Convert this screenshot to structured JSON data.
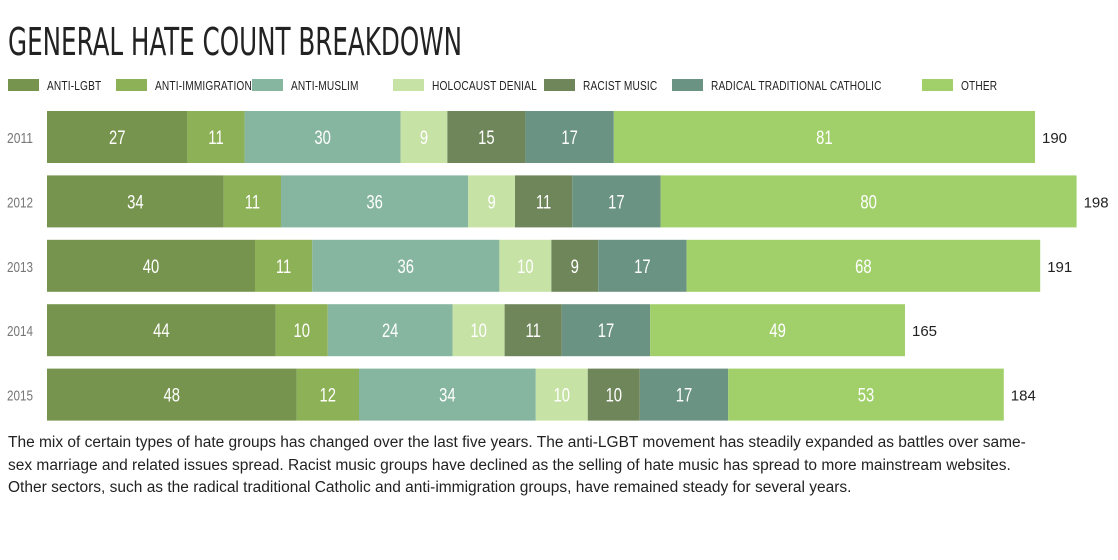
{
  "colors": {
    "Anti-LGBT": "#77944e",
    "Anti-Immigration": "#8db156",
    "Anti-Muslim": "#86b6a0",
    "Holocaust Denial": "#c6e2a4",
    "Racist Music": "#6f865a",
    "Radical Traditional Catholic": "#6a9383",
    "Other": "#a1d06b"
  },
  "legend": [
    {
      "label": "ANTI-LGBT",
      "series": "Anti-LGBT"
    },
    {
      "label": "ANTI-IMMIGRATION",
      "series": "Anti-Immigration"
    },
    {
      "label": "ANTI-MUSLIM",
      "series": "Anti-Muslim"
    },
    {
      "label": "HOLOCAUST DENIAL",
      "series": "Holocaust Denial"
    },
    {
      "label": "RACIST MUSIC",
      "series": "Racist Music"
    },
    {
      "label": "RADICAL TRADITIONAL CATHOLIC",
      "series": "Radical Traditional Catholic"
    },
    {
      "label": "OTHER",
      "series": "Other"
    }
  ],
  "caption": "The mix of certain types of hate groups has changed over the last five years. The anti-LGBT movement has steadily expanded as battles over same-sex marriage and related issues spread. Racist music groups have declined as the selling of hate music has spread to more mainstream websites. Other sectors, such as the radical traditional Catholic and anti-immigration groups, have remained steady for several years.",
  "chart_data": {
    "type": "bar",
    "orientation": "horizontal",
    "stacked": true,
    "title": "GENERAL HATE COUNT BREAKDOWN",
    "categories": [
      "2011",
      "2012",
      "2013",
      "2014",
      "2015"
    ],
    "series": [
      {
        "name": "Anti-LGBT",
        "values": [
          27,
          34,
          40,
          44,
          48
        ]
      },
      {
        "name": "Anti-Immigration",
        "values": [
          11,
          11,
          11,
          10,
          12
        ]
      },
      {
        "name": "Anti-Muslim",
        "values": [
          30,
          36,
          36,
          24,
          34
        ]
      },
      {
        "name": "Holocaust Denial",
        "values": [
          9,
          9,
          10,
          10,
          10
        ]
      },
      {
        "name": "Racist Music",
        "values": [
          15,
          11,
          9,
          11,
          10
        ]
      },
      {
        "name": "Radical Traditional Catholic",
        "values": [
          17,
          17,
          17,
          17,
          17
        ]
      },
      {
        "name": "Other",
        "values": [
          81,
          80,
          68,
          49,
          53
        ]
      }
    ],
    "totals": [
      190,
      198,
      191,
      165,
      184
    ],
    "legend_position": "top",
    "grid": false
  }
}
